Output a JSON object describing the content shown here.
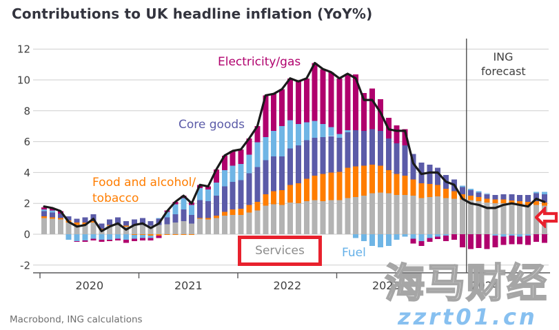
{
  "title": "Contributions to UK headline inflation (YoY%)",
  "source": "Macrobond, ING calculations",
  "series_labels": {
    "electricity_gas": "Electricity/gas",
    "core_goods": "Core goods",
    "food_line1": "Food and alcohol/",
    "food_line2": "tobacco",
    "services": "Services",
    "fuel": "Fuel",
    "forecast_line1": "ING",
    "forecast_line2": "forecast"
  },
  "watermark": {
    "cjk": "海马财经",
    "url": "zzrt01.cn"
  },
  "colors": {
    "services": "#B3B3B3",
    "food": "#FF7D00",
    "core_goods": "#5B5BA8",
    "fuel": "#6FB5E5",
    "electricity_gas": "#B0006D",
    "headline_line": "#1A1A1A",
    "annotation_red": "#E8212D",
    "grid": "#CDCDCD",
    "axis_text": "#3F3F3F",
    "watermark_blue": "#87C0F0"
  },
  "chart_data": {
    "type": "bar",
    "subtype": "stacked-bar-with-line",
    "title": "Contributions to UK headline inflation (YoY%)",
    "xlabel": "",
    "ylabel": "",
    "ylim": [
      -2,
      12
    ],
    "yticks": [
      -2,
      0,
      2,
      4,
      6,
      8,
      10,
      12
    ],
    "grid": true,
    "legend_position": "inline-annotations",
    "x_year_labels": [
      "2020",
      "2021",
      "2022",
      "2023",
      "2024"
    ],
    "forecast_start_index": 52,
    "forecast_start_month": "2024-05",
    "forecast_label": "ING forecast",
    "months": [
      "2020-01",
      "2020-02",
      "2020-03",
      "2020-04",
      "2020-05",
      "2020-06",
      "2020-07",
      "2020-08",
      "2020-09",
      "2020-10",
      "2020-11",
      "2020-12",
      "2021-01",
      "2021-02",
      "2021-03",
      "2021-04",
      "2021-05",
      "2021-06",
      "2021-07",
      "2021-08",
      "2021-09",
      "2021-10",
      "2021-11",
      "2021-12",
      "2022-01",
      "2022-02",
      "2022-03",
      "2022-04",
      "2022-05",
      "2022-06",
      "2022-07",
      "2022-08",
      "2022-09",
      "2022-10",
      "2022-11",
      "2022-12",
      "2023-01",
      "2023-02",
      "2023-03",
      "2023-04",
      "2023-05",
      "2023-06",
      "2023-07",
      "2023-08",
      "2023-09",
      "2023-10",
      "2023-11",
      "2023-12",
      "2024-01",
      "2024-02",
      "2024-03",
      "2024-04",
      "2024-05",
      "2024-06",
      "2024-07",
      "2024-08",
      "2024-09",
      "2024-10",
      "2024-11",
      "2024-12",
      "2025-01",
      "2025-02"
    ],
    "series": [
      {
        "name": "Services",
        "color": "#B3B3B3",
        "values": [
          1.05,
          1.0,
          0.95,
          0.75,
          0.6,
          0.65,
          0.75,
          0.3,
          0.55,
          0.6,
          0.5,
          0.55,
          0.6,
          0.55,
          0.6,
          0.65,
          0.75,
          0.85,
          0.7,
          1.0,
          0.95,
          1.05,
          1.2,
          1.25,
          1.25,
          1.4,
          1.55,
          1.85,
          1.95,
          1.9,
          2.05,
          2.0,
          2.15,
          2.2,
          2.15,
          2.2,
          2.2,
          2.35,
          2.4,
          2.5,
          2.65,
          2.7,
          2.65,
          2.55,
          2.55,
          2.5,
          2.35,
          2.4,
          2.45,
          2.35,
          2.3,
          2.25,
          2.2,
          2.15,
          2.05,
          2.0,
          2.0,
          1.95,
          1.9,
          1.85,
          1.9,
          1.85
        ]
      },
      {
        "name": "Food and alcohol/tobacco",
        "color": "#FF7D00",
        "values": [
          0.1,
          0.1,
          0.1,
          0.15,
          0.15,
          0.1,
          0.1,
          0.05,
          0.05,
          0.05,
          0.05,
          -0.05,
          -0.05,
          -0.1,
          -0.1,
          -0.05,
          -0.05,
          -0.05,
          -0.05,
          0.05,
          0.1,
          0.15,
          0.25,
          0.35,
          0.4,
          0.5,
          0.55,
          0.75,
          0.85,
          0.95,
          1.15,
          1.3,
          1.45,
          1.6,
          1.75,
          1.8,
          1.85,
          1.95,
          2.0,
          1.95,
          1.85,
          1.75,
          1.5,
          1.35,
          1.25,
          1.05,
          0.95,
          0.85,
          0.75,
          0.6,
          0.5,
          0.35,
          0.3,
          0.25,
          0.25,
          0.25,
          0.25,
          0.25,
          0.25,
          0.25,
          0.25,
          0.2
        ]
      },
      {
        "name": "Core goods",
        "color": "#5B5BA8",
        "values": [
          0.35,
          0.3,
          0.3,
          0.25,
          0.25,
          0.35,
          0.45,
          0.35,
          0.35,
          0.45,
          0.3,
          0.4,
          0.45,
          0.3,
          0.4,
          0.45,
          0.55,
          0.75,
          0.55,
          1.15,
          1.1,
          1.3,
          1.65,
          1.8,
          1.85,
          2.05,
          2.25,
          2.2,
          2.25,
          2.2,
          2.35,
          2.45,
          2.5,
          2.45,
          2.4,
          2.35,
          2.2,
          2.3,
          2.35,
          2.25,
          2.3,
          2.25,
          2.05,
          2.0,
          1.95,
          1.65,
          1.35,
          1.25,
          1.1,
          0.9,
          0.75,
          0.45,
          0.35,
          0.3,
          0.3,
          0.3,
          0.35,
          0.4,
          0.4,
          0.45,
          0.5,
          0.55
        ]
      },
      {
        "name": "Fuel",
        "color": "#6FB5E5",
        "values": [
          0.1,
          0.15,
          0,
          -0.35,
          -0.45,
          -0.4,
          -0.3,
          -0.35,
          -0.35,
          -0.3,
          -0.35,
          -0.25,
          -0.2,
          -0.15,
          0.05,
          0.35,
          0.65,
          0.75,
          0.65,
          0.8,
          0.75,
          0.85,
          1.05,
          1.05,
          1.05,
          1.2,
          1.6,
          1.5,
          1.65,
          1.95,
          1.85,
          1.4,
          1.15,
          1.1,
          0.85,
          0.6,
          0.25,
          0.15,
          -0.25,
          -0.45,
          -0.75,
          -0.85,
          -0.75,
          -0.35,
          -0.15,
          -0.3,
          -0.45,
          -0.25,
          -0.15,
          -0.1,
          0,
          0.1,
          0.1,
          0.1,
          0.05,
          -0.1,
          -0.15,
          -0.1,
          -0.15,
          -0.1,
          0.1,
          0.15
        ]
      },
      {
        "name": "Electricity/gas",
        "color": "#B0006D",
        "values": [
          0.15,
          0.15,
          0.15,
          0,
          -0.05,
          -0.1,
          -0.1,
          -0.15,
          -0.1,
          -0.1,
          -0.2,
          -0.15,
          -0.15,
          -0.15,
          -0.15,
          0.1,
          0.15,
          0.15,
          0.15,
          0.2,
          0.2,
          0.85,
          0.95,
          0.95,
          0.95,
          1.05,
          1.05,
          2.7,
          2.4,
          2.4,
          2.7,
          2.75,
          2.85,
          3.75,
          3.55,
          3.55,
          3.6,
          3.65,
          3.6,
          2.45,
          2.65,
          2.05,
          1.35,
          1.15,
          1.05,
          -0.3,
          -0.3,
          -0.25,
          -0.15,
          -0.35,
          -0.35,
          -0.85,
          -0.95,
          -0.9,
          -0.95,
          -0.75,
          -0.55,
          -0.55,
          -0.5,
          -0.6,
          -0.5,
          -0.55
        ]
      }
    ],
    "line": {
      "name": "Headline inflation (YoY%)",
      "color": "#1A1A1A",
      "values": [
        1.8,
        1.7,
        1.5,
        0.8,
        0.5,
        0.6,
        1.0,
        0.2,
        0.5,
        0.7,
        0.3,
        0.6,
        0.7,
        0.4,
        0.7,
        1.5,
        2.1,
        2.5,
        2.0,
        3.2,
        3.1,
        4.2,
        5.1,
        5.4,
        5.5,
        6.2,
        7.0,
        9.0,
        9.1,
        9.4,
        10.1,
        9.9,
        10.1,
        11.1,
        10.7,
        10.5,
        10.1,
        10.4,
        10.1,
        8.7,
        8.7,
        7.9,
        6.8,
        6.7,
        6.7,
        4.6,
        3.9,
        4.0,
        4.0,
        3.4,
        3.2,
        2.3,
        2.0,
        1.9,
        1.7,
        1.7,
        1.9,
        2.0,
        1.9,
        1.8,
        2.3,
        2.1
      ]
    }
  }
}
